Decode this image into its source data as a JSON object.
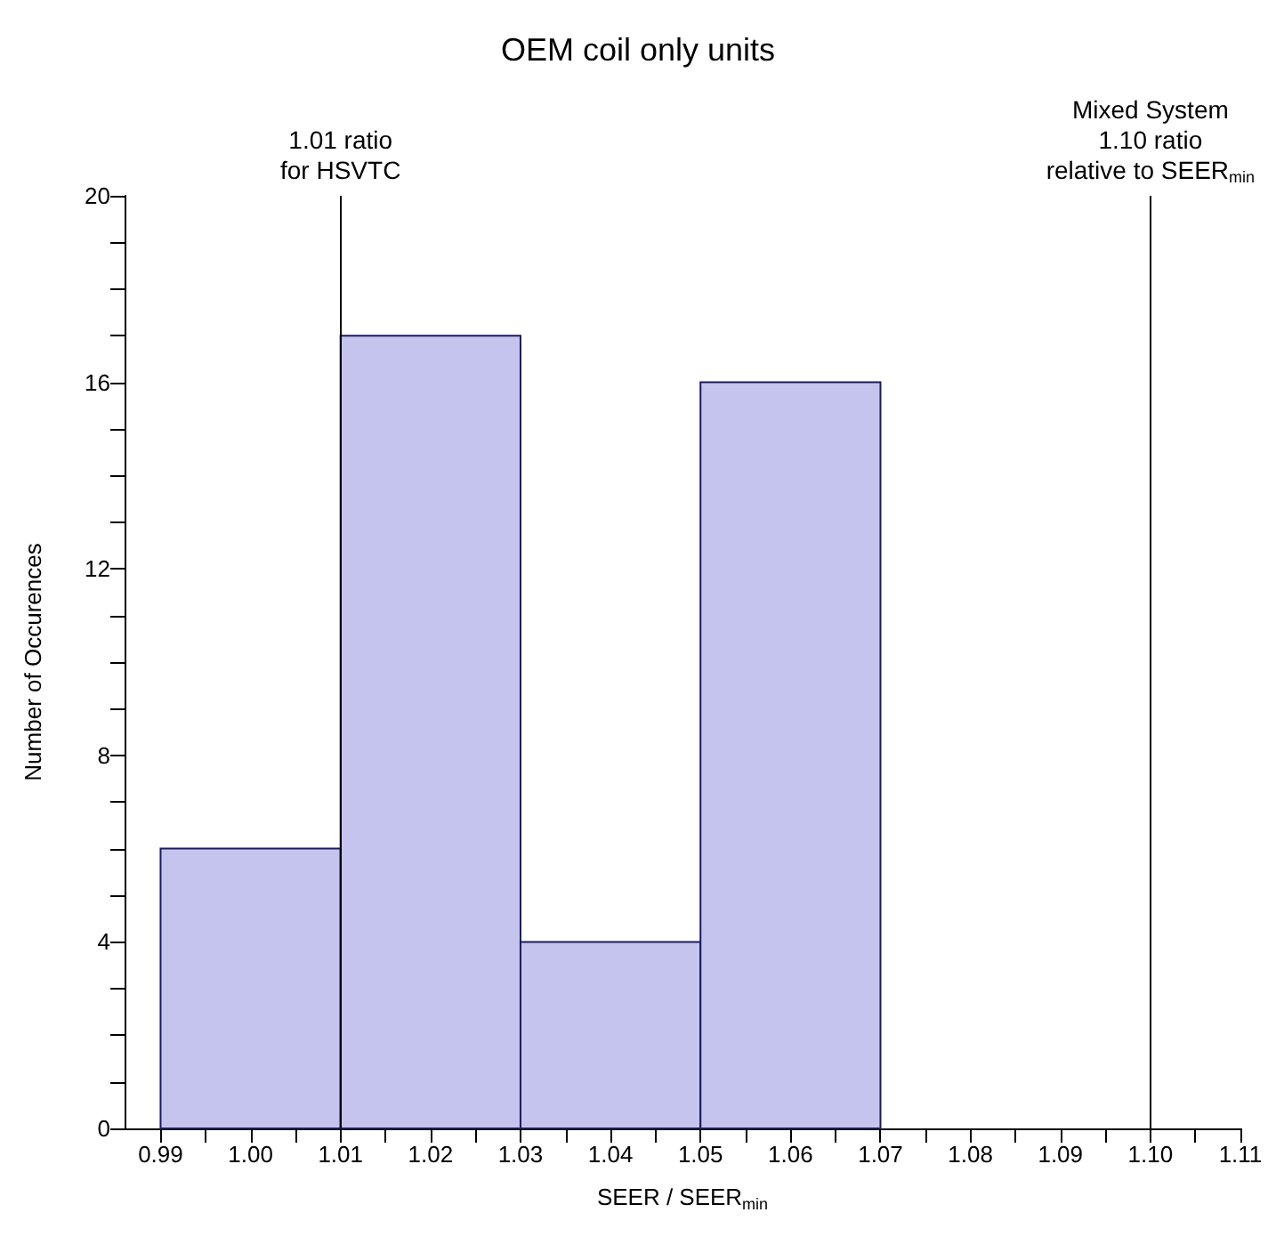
{
  "chart_data": {
    "type": "histogram",
    "title": "OEM coil only units",
    "xlabel": "SEER / SEER$_{min}$",
    "ylabel": "Number of Occurences",
    "bins": [
      0.99,
      1.01,
      1.03,
      1.05,
      1.07
    ],
    "values": [
      6,
      17,
      4,
      16
    ],
    "color": "#c4c4ee",
    "xlim": [
      0.986,
      1.11
    ],
    "xticks": [
      0.99,
      {
        "value": 0.995,
        "label": null
      },
      {
        "value": 1.0,
        "label": "1.00"
      },
      {
        "value": 1.005,
        "label": null
      },
      1.01,
      {
        "value": 1.015,
        "label": null
      },
      1.02,
      {
        "value": 1.025,
        "label": null
      },
      1.03,
      {
        "value": 1.035,
        "label": null
      },
      1.04,
      {
        "value": 1.045,
        "label": null
      },
      1.05,
      {
        "value": 1.055,
        "label": null
      },
      1.06,
      {
        "value": 1.065,
        "label": null
      },
      1.07,
      {
        "value": 1.075,
        "label": null
      },
      1.08,
      {
        "value": 1.085,
        "label": null
      },
      1.09,
      {
        "value": 1.095,
        "label": null
      },
      {
        "value": 1.1,
        "label": "1.10"
      },
      {
        "value": 1.105,
        "label": null
      },
      1.11
    ],
    "ylim": [
      0,
      20
    ],
    "yticks": [
      0,
      {
        "value": 1,
        "label": null
      },
      {
        "value": 2,
        "label": null
      },
      {
        "value": 3,
        "label": null
      },
      4,
      {
        "value": 5,
        "label": null
      },
      {
        "value": 6,
        "label": null
      },
      {
        "value": 7,
        "label": null
      },
      8,
      {
        "value": 9,
        "label": null
      },
      {
        "value": 10,
        "label": null
      },
      {
        "value": 11,
        "label": null
      },
      12,
      {
        "value": 13,
        "label": null
      },
      {
        "value": 14,
        "label": null
      },
      {
        "value": 15,
        "label": null
      },
      16,
      {
        "value": 17,
        "label": null
      },
      {
        "value": 18,
        "label": null
      },
      {
        "value": 19,
        "label": null
      },
      20
    ],
    "ref_lines": [
      {
        "axis": "x",
        "value": 1.01,
        "label": "1.01 ratio\nfor HSVTC",
        "color": "#000000"
      },
      {
        "axis": "x",
        "value": 1.1,
        "label": "Mixed System\n1.10 ratio\nrelative to SEER$_{min}$",
        "color": "#000000"
      }
    ],
    "grid": false
  }
}
